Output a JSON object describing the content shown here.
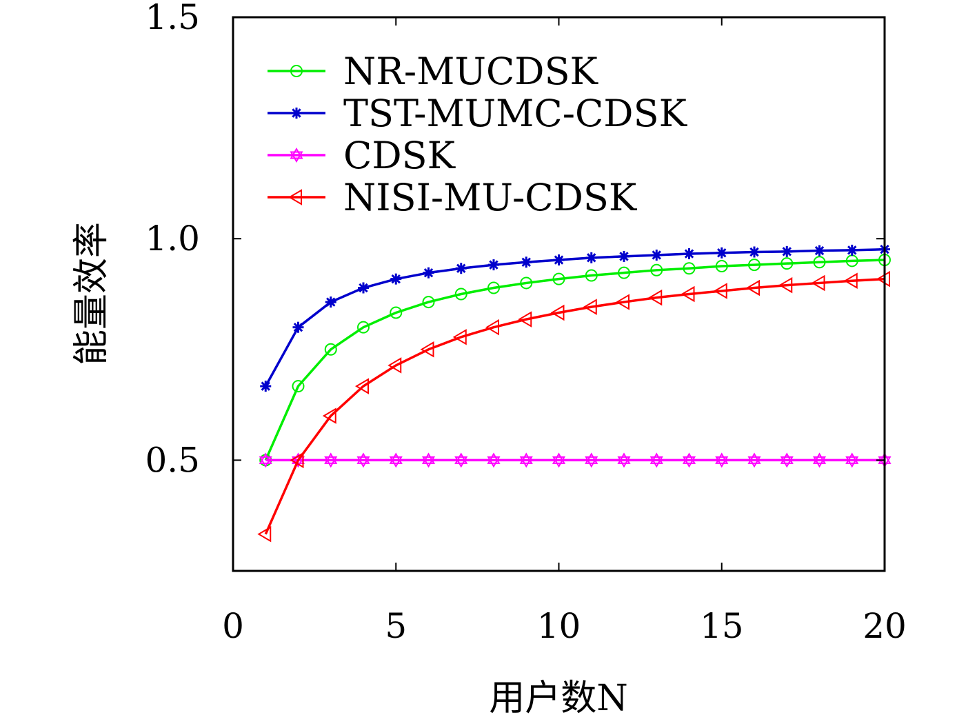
{
  "chart_data": {
    "type": "line",
    "title": "",
    "xlabel": "用户数N",
    "ylabel": "能量效率",
    "xlim": [
      0,
      20
    ],
    "ylim": [
      0.25,
      1.5
    ],
    "xticks": [
      0,
      5,
      10,
      15,
      20
    ],
    "xtick_labels": [
      "0",
      "5",
      "10",
      "15",
      "20"
    ],
    "yticks": [
      0.5,
      1.0,
      1.5
    ],
    "ytick_labels": [
      "0.5",
      "1.0",
      "1.5"
    ],
    "grid": false,
    "legend_position": "top-left",
    "x": [
      1,
      2,
      3,
      4,
      5,
      6,
      7,
      8,
      9,
      10,
      11,
      12,
      13,
      14,
      15,
      16,
      17,
      18,
      19,
      20
    ],
    "series": [
      {
        "name": "NR-MUCDSK",
        "color": "#00ee00",
        "marker": "circle",
        "values": [
          0.5,
          0.667,
          0.75,
          0.8,
          0.833,
          0.857,
          0.875,
          0.889,
          0.9,
          0.909,
          0.917,
          0.923,
          0.929,
          0.933,
          0.938,
          0.941,
          0.944,
          0.947,
          0.95,
          0.952
        ]
      },
      {
        "name": "TST-MUMC-CDSK",
        "color": "#0000cc",
        "marker": "asterisk",
        "values": [
          0.667,
          0.8,
          0.857,
          0.889,
          0.909,
          0.923,
          0.933,
          0.941,
          0.947,
          0.952,
          0.957,
          0.96,
          0.963,
          0.966,
          0.968,
          0.97,
          0.971,
          0.973,
          0.974,
          0.976
        ]
      },
      {
        "name": "CDSK",
        "color": "#ff00ff",
        "marker": "star",
        "values": [
          0.5,
          0.5,
          0.5,
          0.5,
          0.5,
          0.5,
          0.5,
          0.5,
          0.5,
          0.5,
          0.5,
          0.5,
          0.5,
          0.5,
          0.5,
          0.5,
          0.5,
          0.5,
          0.5,
          0.5
        ]
      },
      {
        "name": "NISI-MU-CDSK",
        "color": "#ff0000",
        "marker": "triangle-left",
        "values": [
          0.333,
          0.5,
          0.6,
          0.667,
          0.714,
          0.75,
          0.778,
          0.8,
          0.818,
          0.833,
          0.846,
          0.857,
          0.867,
          0.875,
          0.882,
          0.889,
          0.895,
          0.9,
          0.905,
          0.909
        ]
      }
    ]
  }
}
